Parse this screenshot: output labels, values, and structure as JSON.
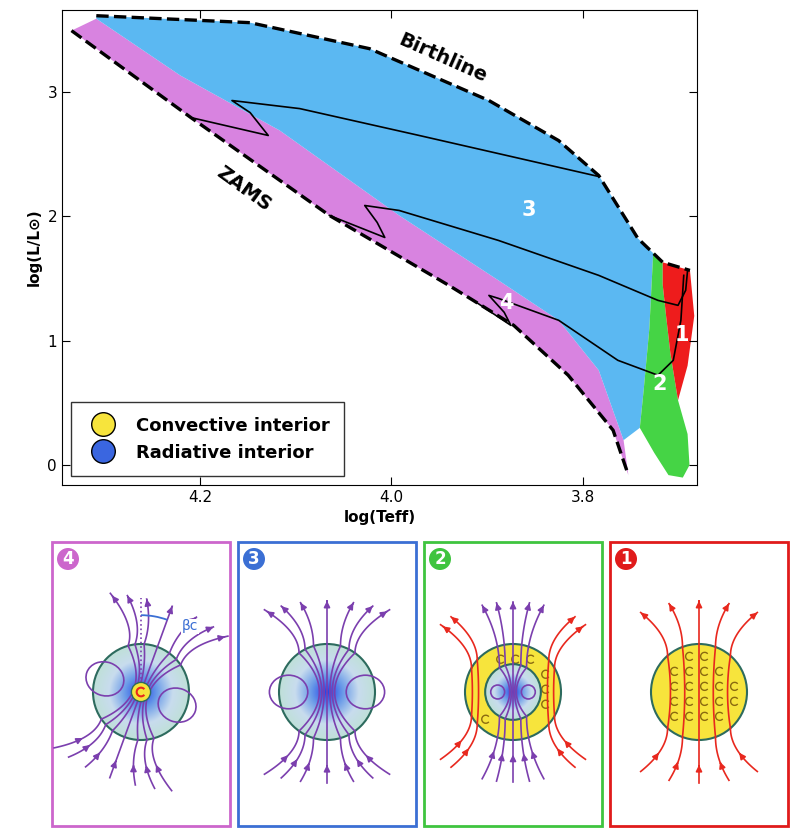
{
  "chart_data": {
    "type": "area",
    "xlabel": "log(Teff)",
    "ylabel": "log(L/L⊙)",
    "xlim": [
      4.345,
      3.68
    ],
    "ylim": [
      -0.16,
      3.66
    ],
    "xticks": [
      {
        "value": 4.2,
        "label": "4.2"
      },
      {
        "value": 4.0,
        "label": "4.0"
      },
      {
        "value": 3.8,
        "label": "3.8"
      }
    ],
    "yticks": [
      0,
      1,
      2,
      3
    ],
    "regions": [
      {
        "name": "4",
        "color": "#d883e0",
        "x": [
          4.309,
          4.221,
          4.117,
          3.992,
          3.888,
          3.825,
          3.783,
          3.757,
          3.752,
          3.768,
          3.815,
          3.872,
          3.94,
          4.065,
          4.21,
          4.335
        ],
        "y": [
          3.59,
          3.133,
          2.691,
          2.008,
          1.486,
          1.165,
          0.763,
          0.201,
          -0.08,
          0.281,
          0.723,
          1.124,
          1.446,
          2.008,
          2.795,
          3.494
        ]
      },
      {
        "name": "3",
        "color": "#5bb8f2",
        "x": [
          4.309,
          4.148,
          4.023,
          3.898,
          3.825,
          3.783,
          3.742,
          3.726,
          3.73,
          3.736,
          3.74,
          3.757,
          3.783,
          3.825,
          3.888,
          3.992,
          4.117,
          4.221,
          4.309
        ],
        "y": [
          3.614,
          3.558,
          3.349,
          2.932,
          2.61,
          2.329,
          1.823,
          1.705,
          1.1,
          0.6,
          0.3,
          0.201,
          0.763,
          1.165,
          1.486,
          2.008,
          2.691,
          3.133,
          3.59
        ]
      },
      {
        "name": "2",
        "color": "#45d445",
        "x": [
          3.726,
          3.716,
          3.716,
          3.7125,
          3.708,
          3.7,
          3.69,
          3.688,
          3.695,
          3.71,
          3.725,
          3.74,
          3.736,
          3.73
        ],
        "y": [
          1.705,
          1.631,
          1.45,
          1.2,
          0.9,
          0.522,
          0.25,
          0.0,
          -0.1,
          -0.08,
          0.1,
          0.3,
          0.6,
          1.1
        ]
      },
      {
        "name": "1",
        "color": "#ee1c1c",
        "x": [
          3.716,
          3.6875,
          3.683,
          3.69,
          3.7,
          3.708,
          3.7125,
          3.716
        ],
        "y": [
          1.631,
          1.566,
          1.2,
          0.8,
          0.522,
          0.9,
          1.2,
          1.45
        ]
      }
    ],
    "curves": [
      {
        "name": "Birthline",
        "line_style": "dashed",
        "x": [
          4.309,
          4.148,
          4.023,
          3.898,
          3.825,
          3.783,
          3.742,
          3.716,
          3.6875
        ],
        "y": [
          3.614,
          3.558,
          3.349,
          2.932,
          2.61,
          2.329,
          1.823,
          1.631,
          1.566
        ]
      },
      {
        "name": "ZAMS",
        "line_style": "dashed",
        "x": [
          4.335,
          4.21,
          4.065,
          3.94,
          3.872,
          3.815,
          3.768,
          3.752
        ],
        "y": [
          3.494,
          2.795,
          2.008,
          1.446,
          1.124,
          0.723,
          0.281,
          -0.08
        ]
      }
    ],
    "tracks": [
      {
        "line_style": "solid",
        "x": [
          3.783,
          3.971,
          4.096,
          4.167,
          4.148,
          4.129,
          4.21
        ],
        "y": [
          2.321,
          2.651,
          2.867,
          2.932,
          2.835,
          2.651,
          2.795
        ]
      },
      {
        "line_style": "solid",
        "x": [
          3.69,
          3.692,
          3.7,
          3.721,
          3.783,
          3.888,
          3.992,
          4.028,
          4.015,
          4.007,
          4.065
        ],
        "y": [
          1.566,
          1.406,
          1.285,
          1.325,
          1.526,
          1.807,
          2.048,
          2.088,
          1.952,
          1.831,
          2.008
        ]
      },
      {
        "line_style": "solid",
        "x": [
          3.694,
          3.697,
          3.705,
          3.721,
          3.763,
          3.825,
          3.888,
          3.898,
          3.882,
          3.875,
          3.919
        ],
        "y": [
          1.526,
          1.165,
          0.843,
          0.723,
          0.843,
          1.165,
          1.341,
          1.365,
          1.229,
          1.124,
          1.349
        ]
      }
    ],
    "legend": "lower left",
    "legend_entries": [
      {
        "name": "Convective interior",
        "color": "#f7e43c"
      },
      {
        "name": "Radiative interior",
        "color": "#3a66e0"
      }
    ]
  },
  "panels": [
    {
      "label": "4",
      "type": "radiative_convective_core",
      "color": "#cc66cc",
      "angle_label": "βc"
    },
    {
      "label": "3",
      "type": "radiative",
      "color": "#3b6fd4"
    },
    {
      "label": "2",
      "type": "convective_radiative_core",
      "color": "#3fc43f"
    },
    {
      "label": "1",
      "type": "convective",
      "color": "#e01b1b"
    }
  ]
}
